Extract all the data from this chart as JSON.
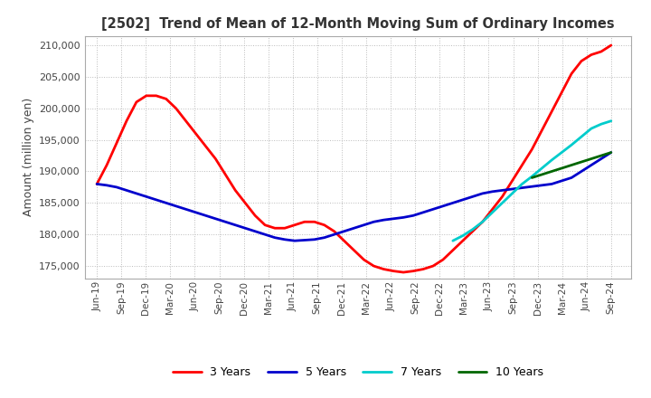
{
  "title": "[2502]  Trend of Mean of 12-Month Moving Sum of Ordinary Incomes",
  "ylabel": "Amount (million yen)",
  "ylim": [
    173000,
    211500
  ],
  "yticks": [
    175000,
    180000,
    185000,
    190000,
    195000,
    200000,
    205000,
    210000
  ],
  "background_color": "#ffffff",
  "grid_color": "#bbbbbb",
  "lines": {
    "3years": {
      "color": "#ff0000",
      "label": "3 Years",
      "x": [
        0,
        1,
        2,
        3,
        4,
        5,
        6,
        7,
        8,
        9,
        10,
        11,
        12,
        13,
        14,
        15,
        16,
        17,
        18,
        19,
        20,
        21,
        22,
        23,
        24,
        25,
        26,
        27,
        28,
        29,
        30,
        31,
        32,
        33,
        34,
        35,
        36,
        37,
        38,
        39,
        40,
        41,
        42,
        43,
        44,
        45,
        46,
        47,
        48,
        49,
        50,
        51,
        52
      ],
      "y": [
        188000,
        191000,
        194500,
        198000,
        201000,
        202000,
        202000,
        201500,
        200000,
        198000,
        196000,
        194000,
        192000,
        189500,
        187000,
        185000,
        183000,
        181500,
        181000,
        181000,
        181500,
        182000,
        182000,
        181500,
        180500,
        179000,
        177500,
        176000,
        175000,
        174500,
        174200,
        174000,
        174200,
        174500,
        175000,
        176000,
        177500,
        179000,
        180500,
        182000,
        184000,
        186000,
        188500,
        191000,
        193500,
        196500,
        199500,
        202500,
        205500,
        207500,
        208500,
        209000,
        210000
      ]
    },
    "5years": {
      "color": "#0000cc",
      "label": "5 Years",
      "x": [
        0,
        1,
        2,
        3,
        4,
        5,
        6,
        7,
        8,
        9,
        10,
        11,
        12,
        13,
        14,
        15,
        16,
        17,
        18,
        19,
        20,
        21,
        22,
        23,
        24,
        25,
        26,
        27,
        28,
        29,
        30,
        31,
        32,
        33,
        34,
        35,
        36,
        37,
        38,
        39,
        40,
        41,
        42,
        43,
        44,
        45,
        46,
        47,
        48,
        49,
        50,
        51,
        52
      ],
      "y": [
        188000,
        187800,
        187500,
        187000,
        186500,
        186000,
        185500,
        185000,
        184500,
        184000,
        183500,
        183000,
        182500,
        182000,
        181500,
        181000,
        180500,
        180000,
        179500,
        179200,
        179000,
        179100,
        179200,
        179500,
        180000,
        180500,
        181000,
        181500,
        182000,
        182300,
        182500,
        182700,
        183000,
        183500,
        184000,
        184500,
        185000,
        185500,
        186000,
        186500,
        186800,
        187000,
        187200,
        187400,
        187600,
        187800,
        188000,
        188500,
        189000,
        190000,
        191000,
        192000,
        193000
      ]
    },
    "7years": {
      "color": "#00cccc",
      "label": "7 Years",
      "x": [
        36,
        37,
        38,
        39,
        40,
        41,
        42,
        43,
        44,
        45,
        46,
        47,
        48,
        49,
        50,
        51,
        52
      ],
      "y": [
        179000,
        179800,
        180800,
        182000,
        183500,
        185000,
        186500,
        188000,
        189200,
        190500,
        191800,
        193000,
        194200,
        195500,
        196800,
        197500,
        198000
      ]
    },
    "10years": {
      "color": "#006600",
      "label": "10 Years",
      "x": [
        44,
        45,
        46,
        47,
        48,
        49,
        50,
        51,
        52
      ],
      "y": [
        189000,
        189500,
        190000,
        190500,
        191000,
        191500,
        192000,
        192500,
        193000
      ]
    }
  },
  "xtick_labels": [
    "Jun-19",
    "Sep-19",
    "Dec-19",
    "Mar-20",
    "Jun-20",
    "Sep-20",
    "Dec-20",
    "Mar-21",
    "Jun-21",
    "Sep-21",
    "Dec-21",
    "Mar-22",
    "Jun-22",
    "Sep-22",
    "Dec-22",
    "Mar-23",
    "Jun-23",
    "Sep-23",
    "Dec-23",
    "Mar-24",
    "Jun-24",
    "Sep-24"
  ],
  "n_data_points": 53,
  "n_quarters": 22
}
